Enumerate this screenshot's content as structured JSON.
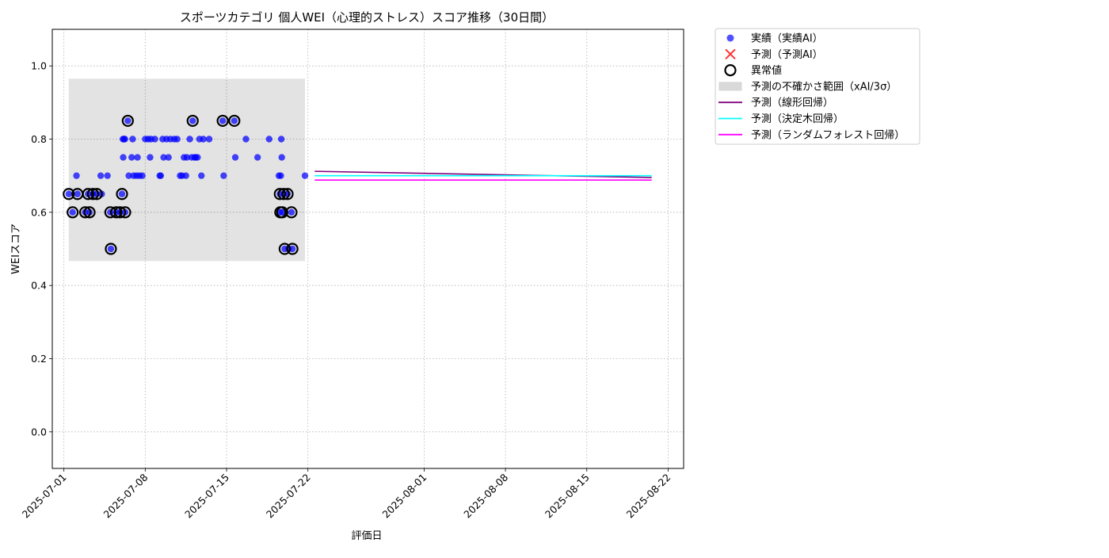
{
  "chart_data": {
    "type": "scatter",
    "title": "スポーツカテゴリ 個人WEI（心理的ストレス）スコア推移（30日間）",
    "xlabel": "評価日",
    "ylabel": "WEIスコア",
    "xlim": [
      "2025-06-30T00:00",
      "2025-08-23T08:00"
    ],
    "ylim": [
      -0.1,
      1.1
    ],
    "yticks": [
      0.0,
      0.2,
      0.4,
      0.6,
      0.8,
      1.0
    ],
    "ytick_labels": [
      "0.0",
      "0.2",
      "0.4",
      "0.6",
      "0.8",
      "1.0"
    ],
    "xticks": [
      "2025-07-01",
      "2025-07-08",
      "2025-07-15",
      "2025-07-22",
      "2025-08-01",
      "2025-08-08",
      "2025-08-15",
      "2025-08-22"
    ],
    "xtick_labels": [
      "2025-07-01",
      "2025-07-08",
      "2025-07-15",
      "2025-07-22",
      "2025-08-01",
      "2025-08-08",
      "2025-08-15",
      "2025-08-22"
    ],
    "grid": true,
    "legend_position": "outside-top-right",
    "colors": {
      "actual": "#0000ff",
      "predicted_ai": "#ff0000",
      "anomaly": "#000000",
      "band": "#c8c8c8",
      "linear": "#800080",
      "tree": "#00ffff",
      "forest": "#ff00ff"
    },
    "legend": [
      {
        "label": "実績（実績AI）",
        "kind": "dot",
        "color": "#3333ff"
      },
      {
        "label": "予測（予測AI）",
        "kind": "cross",
        "color": "#ff3333"
      },
      {
        "label": "異常値",
        "kind": "ring",
        "color": "#000000"
      },
      {
        "label": "予測の不確かさ範囲（xAI/3σ）",
        "kind": "patch",
        "color": "#d9d9d9"
      },
      {
        "label": "予測（線形回帰）",
        "kind": "line",
        "color": "#800080"
      },
      {
        "label": "予測（決定木回帰）",
        "kind": "line",
        "color": "#00ffff"
      },
      {
        "label": "予測（ランダムフォレスト回帰）",
        "kind": "line",
        "color": "#ff00ff"
      }
    ],
    "uncertainty_band": {
      "x": [
        "2025-07-01T10:00",
        "2025-07-21T18:00"
      ],
      "y": [
        0.467,
        0.965
      ]
    },
    "actual_points": [
      {
        "x": "2025-07-01T10:00",
        "y": 0.65
      },
      {
        "x": "2025-07-01T18:00",
        "y": 0.6
      },
      {
        "x": "2025-07-02T02:00",
        "y": 0.7
      },
      {
        "x": "2025-07-02T04:00",
        "y": 0.65
      },
      {
        "x": "2025-07-02T20:00",
        "y": 0.6
      },
      {
        "x": "2025-07-03T02:00",
        "y": 0.65
      },
      {
        "x": "2025-07-03T05:00",
        "y": 0.6
      },
      {
        "x": "2025-07-03T12:00",
        "y": 0.65
      },
      {
        "x": "2025-07-03T20:00",
        "y": 0.65
      },
      {
        "x": "2025-07-04T04:00",
        "y": 0.7
      },
      {
        "x": "2025-07-04T06:00",
        "y": 0.65
      },
      {
        "x": "2025-07-04T18:00",
        "y": 0.7
      },
      {
        "x": "2025-07-05T00:00",
        "y": 0.6
      },
      {
        "x": "2025-07-05T01:00",
        "y": 0.5
      },
      {
        "x": "2025-07-05T12:00",
        "y": 0.6
      },
      {
        "x": "2025-07-05T20:00",
        "y": 0.6
      },
      {
        "x": "2025-07-06T00:00",
        "y": 0.65
      },
      {
        "x": "2025-07-06T02:00",
        "y": 0.8
      },
      {
        "x": "2025-07-06T02:30",
        "y": 0.75
      },
      {
        "x": "2025-07-06T04:00",
        "y": 0.8
      },
      {
        "x": "2025-07-06T06:00",
        "y": 0.8
      },
      {
        "x": "2025-07-06T06:30",
        "y": 0.6
      },
      {
        "x": "2025-07-06T12:00",
        "y": 0.85
      },
      {
        "x": "2025-07-06T14:00",
        "y": 0.7
      },
      {
        "x": "2025-07-06T20:00",
        "y": 0.75
      },
      {
        "x": "2025-07-06T22:00",
        "y": 0.8
      },
      {
        "x": "2025-07-07T00:00",
        "y": 0.7
      },
      {
        "x": "2025-07-07T06:00",
        "y": 0.7
      },
      {
        "x": "2025-07-07T08:00",
        "y": 0.75
      },
      {
        "x": "2025-07-07T12:00",
        "y": 0.7
      },
      {
        "x": "2025-07-07T18:00",
        "y": 0.7
      },
      {
        "x": "2025-07-08T00:00",
        "y": 0.8
      },
      {
        "x": "2025-07-08T06:00",
        "y": 0.8
      },
      {
        "x": "2025-07-08T10:00",
        "y": 0.75
      },
      {
        "x": "2025-07-08T12:00",
        "y": 0.8
      },
      {
        "x": "2025-07-08T20:00",
        "y": 0.8
      },
      {
        "x": "2025-07-09T06:00",
        "y": 0.7
      },
      {
        "x": "2025-07-09T08:00",
        "y": 0.7
      },
      {
        "x": "2025-07-09T12:00",
        "y": 0.8
      },
      {
        "x": "2025-07-09T14:00",
        "y": 0.75
      },
      {
        "x": "2025-07-09T20:00",
        "y": 0.8
      },
      {
        "x": "2025-07-10T00:00",
        "y": 0.75
      },
      {
        "x": "2025-07-10T04:00",
        "y": 0.8
      },
      {
        "x": "2025-07-10T12:00",
        "y": 0.8
      },
      {
        "x": "2025-07-10T18:00",
        "y": 0.8
      },
      {
        "x": "2025-07-11T00:00",
        "y": 0.7
      },
      {
        "x": "2025-07-11T04:00",
        "y": 0.7
      },
      {
        "x": "2025-07-11T08:00",
        "y": 0.75
      },
      {
        "x": "2025-07-11T12:00",
        "y": 0.7
      },
      {
        "x": "2025-07-11T14:00",
        "y": 0.75
      },
      {
        "x": "2025-07-11T20:00",
        "y": 0.8
      },
      {
        "x": "2025-07-12T00:00",
        "y": 0.75
      },
      {
        "x": "2025-07-12T02:00",
        "y": 0.85
      },
      {
        "x": "2025-07-12T06:00",
        "y": 0.75
      },
      {
        "x": "2025-07-12T08:00",
        "y": 0.75
      },
      {
        "x": "2025-07-12T12:00",
        "y": 0.75
      },
      {
        "x": "2025-07-12T16:00",
        "y": 0.8
      },
      {
        "x": "2025-07-12T20:00",
        "y": 0.7
      },
      {
        "x": "2025-07-13T00:00",
        "y": 0.8
      },
      {
        "x": "2025-07-13T12:00",
        "y": 0.8
      },
      {
        "x": "2025-07-14T16:00",
        "y": 0.85
      },
      {
        "x": "2025-07-14T18:00",
        "y": 0.7
      },
      {
        "x": "2025-07-15T16:00",
        "y": 0.85
      },
      {
        "x": "2025-07-15T18:00",
        "y": 0.75
      },
      {
        "x": "2025-07-16T16:00",
        "y": 0.8
      },
      {
        "x": "2025-07-17T16:00",
        "y": 0.75
      },
      {
        "x": "2025-07-18T16:00",
        "y": 0.8
      },
      {
        "x": "2025-07-19T12:00",
        "y": 0.7
      },
      {
        "x": "2025-07-19T14:00",
        "y": 0.65
      },
      {
        "x": "2025-07-19T15:00",
        "y": 0.6
      },
      {
        "x": "2025-07-19T16:00",
        "y": 0.7
      },
      {
        "x": "2025-07-19T17:00",
        "y": 0.8
      },
      {
        "x": "2025-07-19T18:00",
        "y": 0.75
      },
      {
        "x": "2025-07-19T19:00",
        "y": 0.6
      },
      {
        "x": "2025-07-19T22:00",
        "y": 0.65
      },
      {
        "x": "2025-07-20T00:00",
        "y": 0.5
      },
      {
        "x": "2025-07-20T06:00",
        "y": 0.65
      },
      {
        "x": "2025-07-20T08:00",
        "y": 0.5
      },
      {
        "x": "2025-07-20T14:00",
        "y": 0.6
      },
      {
        "x": "2025-07-20T16:00",
        "y": 0.5
      },
      {
        "x": "2025-07-21T18:00",
        "y": 0.7
      }
    ],
    "anomaly_points": [
      {
        "x": "2025-07-01T10:00",
        "y": 0.65
      },
      {
        "x": "2025-07-01T18:00",
        "y": 0.6
      },
      {
        "x": "2025-07-02T04:00",
        "y": 0.65
      },
      {
        "x": "2025-07-02T20:00",
        "y": 0.6
      },
      {
        "x": "2025-07-03T02:00",
        "y": 0.65
      },
      {
        "x": "2025-07-03T05:00",
        "y": 0.6
      },
      {
        "x": "2025-07-03T12:00",
        "y": 0.65
      },
      {
        "x": "2025-07-03T20:00",
        "y": 0.65
      },
      {
        "x": "2025-07-05T00:00",
        "y": 0.6
      },
      {
        "x": "2025-07-05T01:00",
        "y": 0.5
      },
      {
        "x": "2025-07-05T12:00",
        "y": 0.6
      },
      {
        "x": "2025-07-05T20:00",
        "y": 0.6
      },
      {
        "x": "2025-07-06T00:00",
        "y": 0.65
      },
      {
        "x": "2025-07-06T06:30",
        "y": 0.6
      },
      {
        "x": "2025-07-06T12:00",
        "y": 0.85
      },
      {
        "x": "2025-07-12T02:00",
        "y": 0.85
      },
      {
        "x": "2025-07-14T16:00",
        "y": 0.85
      },
      {
        "x": "2025-07-15T16:00",
        "y": 0.85
      },
      {
        "x": "2025-07-19T14:00",
        "y": 0.65
      },
      {
        "x": "2025-07-19T15:00",
        "y": 0.6
      },
      {
        "x": "2025-07-19T19:00",
        "y": 0.6
      },
      {
        "x": "2025-07-19T22:00",
        "y": 0.65
      },
      {
        "x": "2025-07-20T00:00",
        "y": 0.5
      },
      {
        "x": "2025-07-20T06:00",
        "y": 0.65
      },
      {
        "x": "2025-07-20T14:00",
        "y": 0.6
      },
      {
        "x": "2025-07-20T16:00",
        "y": 0.5
      }
    ],
    "series": [
      {
        "name": "予測（線形回帰）",
        "key": "linear",
        "x": [
          "2025-07-22T14:00",
          "2025-08-20T14:00"
        ],
        "y": [
          0.712,
          0.695
        ]
      },
      {
        "name": "予測（決定木回帰）",
        "key": "tree",
        "x": [
          "2025-07-22T14:00",
          "2025-08-20T14:00"
        ],
        "y": [
          0.7,
          0.7
        ]
      },
      {
        "name": "予測（ランダムフォレスト回帰）",
        "key": "forest",
        "x": [
          "2025-07-22T14:00",
          "2025-08-20T14:00"
        ],
        "y": [
          0.688,
          0.688
        ]
      }
    ]
  }
}
